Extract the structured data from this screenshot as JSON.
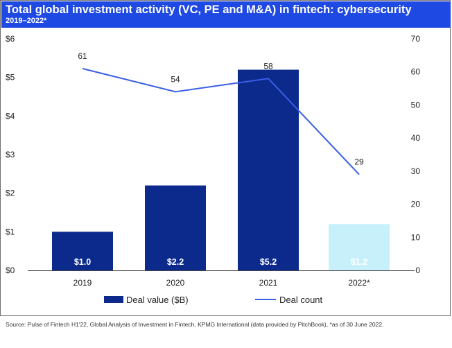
{
  "header": {
    "title": "Total global investment activity (VC, PE and M&A) in fintech: cybersecurity",
    "subtitle": "2019–2022*"
  },
  "chart_data": {
    "type": "bar",
    "categories": [
      "2019",
      "2020",
      "2021",
      "2022*"
    ],
    "series": [
      {
        "name": "Deal value ($B)",
        "type": "bar",
        "axis": "left",
        "values": [
          1.0,
          2.2,
          5.2,
          1.2
        ],
        "labels": [
          "$1.0",
          "$2.2",
          "$5.2",
          "$1.2"
        ],
        "colors": [
          "#0b2a8c",
          "#0b2a8c",
          "#0b2a8c",
          "#c8f0fb"
        ]
      },
      {
        "name": "Deal count",
        "type": "line",
        "axis": "right",
        "values": [
          61,
          54,
          58,
          29
        ],
        "labels": [
          "61",
          "54",
          "58",
          "29"
        ],
        "color": "#3a5ee6"
      }
    ],
    "y_left": {
      "min": 0,
      "max": 6,
      "ticks": [
        "$0",
        "$1",
        "$2",
        "$3",
        "$4",
        "$5",
        "$6"
      ]
    },
    "y_right": {
      "min": 0,
      "max": 70,
      "ticks": [
        "0",
        "10",
        "20",
        "30",
        "40",
        "50",
        "60",
        "70"
      ]
    },
    "grid": false,
    "legend_position": "bottom"
  },
  "source_note": "Source: Pulse of Fintech H1'22, Global Analysis of Investment in Fintech, KPMG International (data provided by PitchBook), *as of 30 June 2022."
}
